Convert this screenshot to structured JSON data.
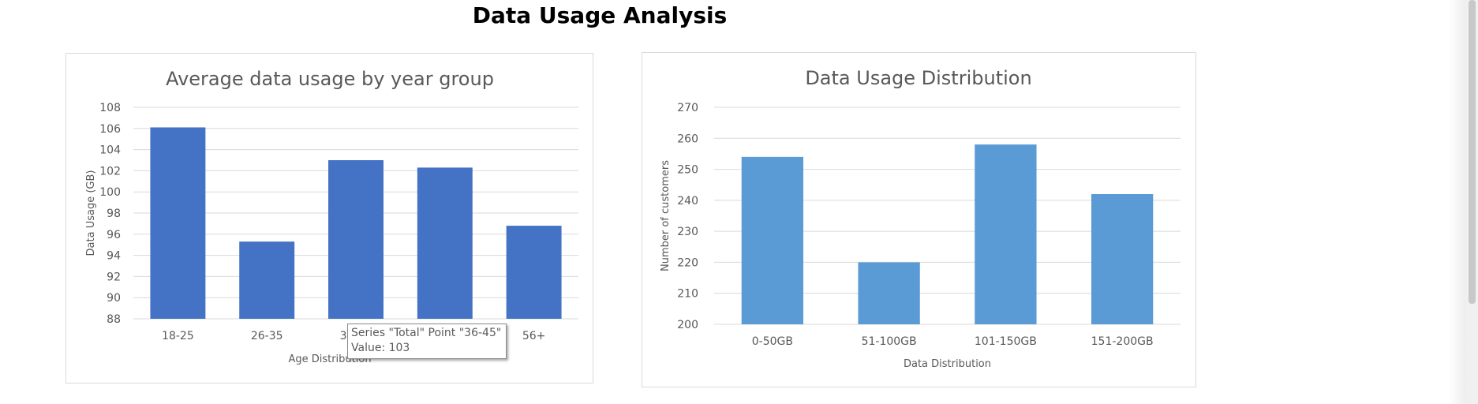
{
  "page": {
    "title": "Data Usage Analysis"
  },
  "tooltip": {
    "line1": "Series \"Total\" Point \"36-45\"",
    "line2": "Value: 103"
  },
  "chart_data": [
    {
      "type": "bar",
      "title": "Average data usage by year group",
      "xlabel": "Age Distribution",
      "ylabel": "Data Usage (GB)",
      "categories": [
        "18-25",
        "26-35",
        "36-45",
        "46-55",
        "56+"
      ],
      "series": [
        {
          "name": "Total",
          "values": [
            106.1,
            95.3,
            103.0,
            102.3,
            96.8
          ]
        }
      ],
      "ylim": [
        88,
        108
      ],
      "yticks": [
        88,
        90,
        92,
        94,
        96,
        98,
        100,
        102,
        104,
        106,
        108
      ],
      "grid": true,
      "legend": "none",
      "bar_color": "#4472C4"
    },
    {
      "type": "bar",
      "title": "Data Usage Distribution",
      "xlabel": "Data Distribution",
      "ylabel": "Number of customers",
      "categories": [
        "0-50GB",
        "51-100GB",
        "101-150GB",
        "151-200GB"
      ],
      "series": [
        {
          "values": [
            254,
            220,
            258,
            242
          ]
        }
      ],
      "ylim": [
        200,
        270
      ],
      "yticks": [
        200,
        210,
        220,
        230,
        240,
        250,
        260,
        270
      ],
      "grid": true,
      "legend": "none",
      "bar_color": "#5B9BD5"
    }
  ]
}
